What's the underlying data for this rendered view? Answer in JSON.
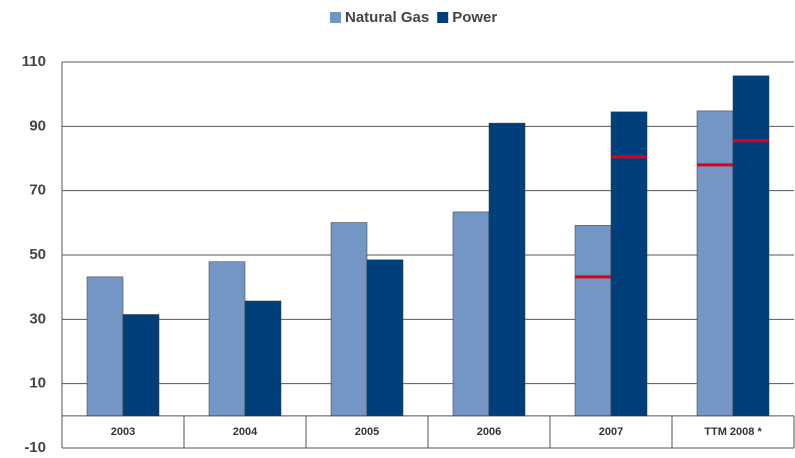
{
  "chart_data": {
    "type": "bar",
    "categories": [
      "2003",
      "2004",
      "2005",
      "2006",
      "2007",
      "TTM 2008 *"
    ],
    "series": [
      {
        "name": "Natural Gas",
        "color": "#7396c4",
        "values": [
          43.2,
          47.9,
          60.1,
          63.4,
          59.2,
          94.8
        ],
        "marker_values": [
          null,
          null,
          null,
          null,
          43.2,
          78
        ]
      },
      {
        "name": "Power",
        "color": "#003f7a",
        "values": [
          31.5,
          35.7,
          48.5,
          91,
          94.5,
          105.7
        ],
        "marker_values": [
          null,
          null,
          null,
          null,
          80.5,
          85.5
        ]
      }
    ],
    "marker_color": "#e0001b",
    "ylim": [
      -10,
      110
    ],
    "yticks": [
      -10,
      10,
      30,
      50,
      70,
      90,
      110
    ],
    "grid": true,
    "legend": "top"
  }
}
